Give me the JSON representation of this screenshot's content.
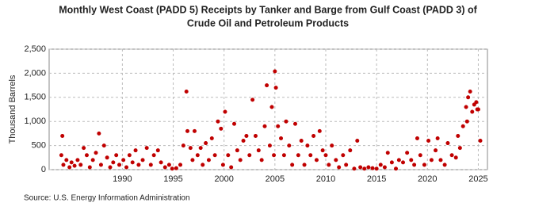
{
  "chart_data": {
    "type": "scatter",
    "title": [
      "Monthly West Coast (PADD 5) Receipts by Tanker and Barge from Gulf Coast (PADD 3) of",
      "Crude Oil and Petroleum Products"
    ],
    "y_label": "Thousand Barrels",
    "source": "Source: U.S. Energy Information Administration",
    "color": "#c00000",
    "grid": true,
    "xlim": [
      1982.8,
      2025.9
    ],
    "ylim": [
      0,
      2500
    ],
    "xticks": [
      1990,
      1995,
      2000,
      2005,
      2010,
      2015,
      2020,
      2025
    ],
    "yticks": [
      0,
      500,
      {
        "value": 1000,
        "label": "1,000"
      },
      {
        "value": 1500,
        "label": "1,500"
      },
      {
        "value": 2000,
        "label": "2,000"
      },
      {
        "value": 2500,
        "label": "2,500"
      }
    ],
    "x": [
      1984.0,
      1984.1,
      1984.2,
      1984.5,
      1984.8,
      1985.0,
      1985.3,
      1985.6,
      1985.9,
      1986.2,
      1986.5,
      1986.8,
      1987.1,
      1987.4,
      1987.7,
      1987.9,
      1988.2,
      1988.5,
      1988.8,
      1989.1,
      1989.4,
      1989.7,
      1990.1,
      1990.4,
      1990.7,
      1991.0,
      1991.3,
      1991.6,
      1992.0,
      1992.4,
      1992.8,
      1993.1,
      1993.5,
      1993.8,
      1994.2,
      1994.6,
      1994.9,
      1995.3,
      1995.7,
      1996.0,
      1996.3,
      1996.4,
      1996.7,
      1996.9,
      1997.1,
      1997.4,
      1997.7,
      1997.9,
      1998.2,
      1998.5,
      1998.8,
      1999.1,
      1999.4,
      1999.7,
      1999.9,
      2000.1,
      2000.4,
      2000.7,
      2001.0,
      2001.3,
      2001.6,
      2001.9,
      2002.2,
      2002.5,
      2002.8,
      2003.1,
      2003.4,
      2003.7,
      2004.0,
      2004.2,
      2004.5,
      2004.7,
      2004.9,
      2005.0,
      2005.1,
      2005.3,
      2005.6,
      2005.9,
      2006.1,
      2006.4,
      2006.7,
      2007.0,
      2007.3,
      2007.6,
      2007.9,
      2008.2,
      2008.5,
      2008.8,
      2009.1,
      2009.4,
      2009.7,
      2010.0,
      2010.3,
      2010.6,
      2011.0,
      2011.3,
      2011.7,
      2012.0,
      2012.4,
      2012.8,
      2013.1,
      2013.4,
      2013.8,
      2014.2,
      2014.6,
      2015.0,
      2015.4,
      2015.8,
      2016.1,
      2016.5,
      2016.9,
      2017.2,
      2017.6,
      2018.0,
      2018.4,
      2018.7,
      2019.0,
      2019.3,
      2019.7,
      2020.1,
      2020.4,
      2020.8,
      2021.0,
      2021.3,
      2021.7,
      2022.0,
      2022.4,
      2022.8,
      2023.0,
      2023.2,
      2023.5,
      2023.8,
      2023.9,
      2024.0,
      2024.2,
      2024.4,
      2024.6,
      2024.8,
      2024.9,
      2025.0,
      2025.2
    ],
    "values": [
      300,
      700,
      100,
      200,
      50,
      150,
      80,
      200,
      100,
      450,
      300,
      50,
      200,
      350,
      750,
      100,
      500,
      250,
      50,
      150,
      300,
      100,
      200,
      50,
      300,
      150,
      400,
      100,
      200,
      450,
      100,
      300,
      400,
      150,
      50,
      100,
      20,
      30,
      100,
      500,
      1620,
      800,
      450,
      200,
      800,
      300,
      450,
      100,
      550,
      200,
      650,
      300,
      1000,
      850,
      100,
      1200,
      300,
      50,
      950,
      400,
      200,
      600,
      700,
      300,
      1450,
      700,
      400,
      200,
      900,
      1750,
      500,
      1300,
      300,
      2040,
      1700,
      900,
      650,
      300,
      1000,
      500,
      100,
      950,
      300,
      600,
      100,
      500,
      300,
      700,
      200,
      800,
      400,
      300,
      100,
      500,
      200,
      50,
      300,
      100,
      400,
      20,
      600,
      50,
      20,
      50,
      30,
      20,
      100,
      50,
      350,
      150,
      20,
      200,
      150,
      350,
      200,
      100,
      650,
      300,
      100,
      600,
      200,
      400,
      650,
      200,
      100,
      550,
      300,
      250,
      700,
      450,
      900,
      1300,
      1000,
      1500,
      1620,
      1200,
      1350,
      1400,
      1250,
      1250,
      600
    ]
  }
}
